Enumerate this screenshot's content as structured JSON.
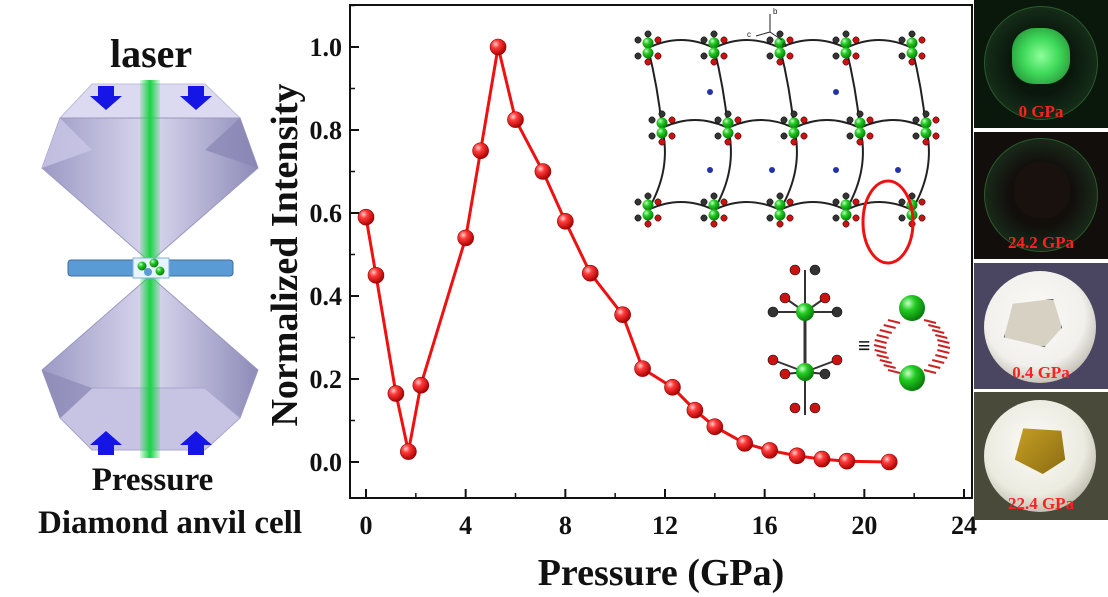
{
  "dac": {
    "laser_label": "laser",
    "pressure_label": "Pressure",
    "cell_label": "Diamond anvil cell"
  },
  "chart_data": {
    "type": "line",
    "xlabel": "Pressure (GPa)",
    "ylabel": "Normalized Intensity",
    "xlim": [
      -0.5,
      24
    ],
    "ylim": [
      -0.1,
      1.1
    ],
    "xticks": [
      0,
      4,
      8,
      12,
      16,
      20,
      24
    ],
    "yticks": [
      0.0,
      0.2,
      0.4,
      0.6,
      0.8,
      1.0
    ],
    "xtick_labels": [
      "0",
      "4",
      "8",
      "12",
      "16",
      "20",
      "24"
    ],
    "ytick_labels": [
      "0.0",
      "0.2",
      "0.4",
      "0.6",
      "0.8",
      "1.0"
    ],
    "grid": false,
    "series": [
      {
        "color": "#ee1111",
        "x": [
          0.0,
          0.4,
          1.2,
          1.7,
          2.2,
          4.0,
          4.6,
          5.3,
          6.0,
          7.1,
          8.0,
          9.0,
          10.3,
          11.1,
          12.3,
          13.2,
          14.0,
          15.2,
          16.2,
          17.3,
          18.3,
          19.3,
          21.0
        ],
        "y": [
          0.59,
          0.45,
          0.165,
          0.025,
          0.185,
          0.54,
          0.75,
          1.0,
          0.825,
          0.7,
          0.58,
          0.455,
          0.355,
          0.225,
          0.18,
          0.125,
          0.085,
          0.045,
          0.028,
          0.015,
          0.007,
          0.002,
          0.0
        ]
      }
    ]
  },
  "photos": [
    {
      "label": "0 GPa",
      "bg": "#0a180c",
      "glow": "#3ed95a"
    },
    {
      "label": "24.2 GPa",
      "bg": "#120e0c",
      "glow": "#2a1c14"
    },
    {
      "label": "0.4 GPa",
      "bg": "#4a4560",
      "glow": "#f2f0ec"
    },
    {
      "label": "22.4 GPa",
      "bg": "#4a4a3a",
      "glow": "#ecebe0"
    }
  ],
  "colors": {
    "data": "#ee1111",
    "beam": "#19d444",
    "arrow": "#1515e6",
    "diamond": "#b6b3d6",
    "gasket": "#5b9bd5",
    "atom_green": "#22cc22",
    "atom_red": "#cc1111",
    "atom_gray": "#333333"
  }
}
